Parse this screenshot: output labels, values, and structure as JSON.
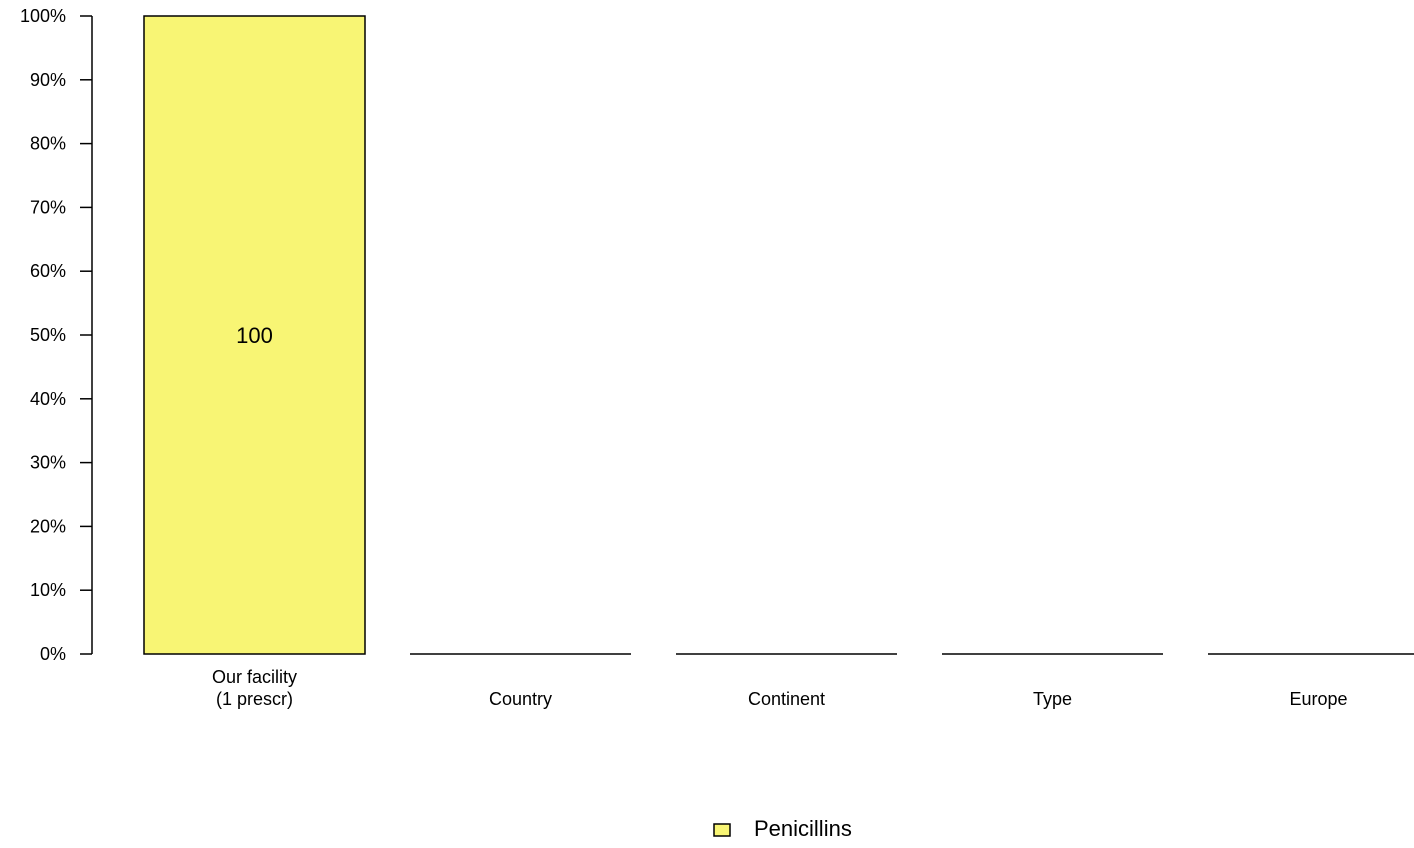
{
  "chart_data": {
    "type": "bar",
    "stacked": true,
    "ylim": [
      0,
      100
    ],
    "yticks": [
      0,
      10,
      20,
      30,
      40,
      50,
      60,
      70,
      80,
      90,
      100
    ],
    "ytick_labels": [
      "0%",
      "10%",
      "20%",
      "30%",
      "40%",
      "50%",
      "60%",
      "70%",
      "80%",
      "90%",
      "100%"
    ],
    "categories": [
      [
        "Our facility",
        "(1 prescr)"
      ],
      [
        "Country"
      ],
      [
        "Continent"
      ],
      [
        "Type"
      ],
      [
        "Europe"
      ]
    ],
    "series": [
      {
        "name": "Penicillins",
        "color": "#f8f574",
        "values": [
          100,
          0,
          0,
          0,
          0
        ],
        "data_labels": [
          "100",
          "",
          "",
          "",
          ""
        ]
      }
    ],
    "legend": {
      "position": "bottom-center"
    },
    "grid": false
  }
}
